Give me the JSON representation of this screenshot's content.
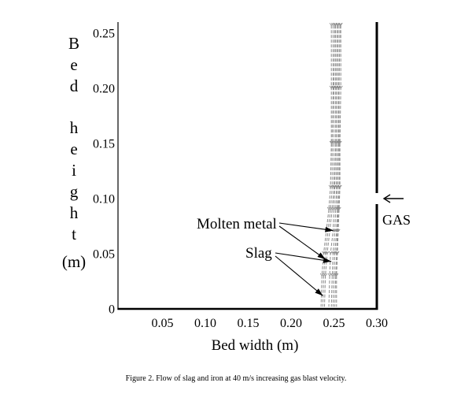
{
  "chart_data": {
    "type": "line",
    "xlabel": "Bed width (m)",
    "ylabel": "Bed height (m)",
    "xlim": [
      0,
      0.3
    ],
    "ylim": [
      0,
      0.26
    ],
    "x_ticks": [
      0.05,
      0.1,
      0.15,
      0.2,
      0.25,
      0.3
    ],
    "x_tick_labels": [
      "0.05",
      "0.10",
      "0.15",
      "0.20",
      "0.25",
      "0.30"
    ],
    "y_ticks": [
      0,
      0.05,
      0.1,
      0.15,
      0.2,
      0.25
    ],
    "y_tick_labels": [
      "0",
      "0.05",
      "0.10",
      "0.15",
      "0.20",
      "0.25"
    ],
    "grid": false,
    "legend": "none",
    "series": [
      {
        "points": [
          [
            0.247,
            0.257
          ],
          [
            0.247,
            0.2
          ],
          [
            0.247,
            0.15
          ],
          [
            0.246,
            0.11
          ],
          [
            0.244,
            0.09
          ],
          [
            0.241,
            0.07
          ],
          [
            0.238,
            0.05
          ],
          [
            0.236,
            0.03
          ],
          [
            0.235,
            0.002
          ]
        ]
      },
      {
        "points": [
          [
            0.249,
            0.257
          ],
          [
            0.249,
            0.2
          ],
          [
            0.248,
            0.15
          ],
          [
            0.248,
            0.11
          ],
          [
            0.246,
            0.09
          ],
          [
            0.243,
            0.07
          ],
          [
            0.24,
            0.05
          ],
          [
            0.238,
            0.03
          ],
          [
            0.237,
            0.002
          ]
        ]
      },
      {
        "points": [
          [
            0.251,
            0.257
          ],
          [
            0.25,
            0.2
          ],
          [
            0.25,
            0.15
          ],
          [
            0.25,
            0.11
          ],
          [
            0.248,
            0.09
          ],
          [
            0.245,
            0.07
          ],
          [
            0.242,
            0.05
          ],
          [
            0.24,
            0.03
          ],
          [
            0.239,
            0.002
          ]
        ]
      },
      {
        "points": [
          [
            0.252,
            0.257
          ],
          [
            0.252,
            0.2
          ],
          [
            0.252,
            0.15
          ],
          [
            0.251,
            0.11
          ],
          [
            0.25,
            0.09
          ],
          [
            0.249,
            0.07
          ],
          [
            0.246,
            0.05
          ],
          [
            0.245,
            0.03
          ],
          [
            0.244,
            0.002
          ]
        ]
      },
      {
        "points": [
          [
            0.254,
            0.257
          ],
          [
            0.253,
            0.2
          ],
          [
            0.253,
            0.15
          ],
          [
            0.253,
            0.11
          ],
          [
            0.252,
            0.09
          ],
          [
            0.251,
            0.07
          ],
          [
            0.249,
            0.05
          ],
          [
            0.248,
            0.03
          ],
          [
            0.247,
            0.002
          ]
        ]
      },
      {
        "points": [
          [
            0.255,
            0.257
          ],
          [
            0.255,
            0.2
          ],
          [
            0.255,
            0.15
          ],
          [
            0.254,
            0.11
          ],
          [
            0.254,
            0.09
          ],
          [
            0.253,
            0.07
          ],
          [
            0.251,
            0.05
          ],
          [
            0.25,
            0.03
          ],
          [
            0.249,
            0.002
          ]
        ]
      },
      {
        "points": [
          [
            0.257,
            0.257
          ],
          [
            0.256,
            0.2
          ],
          [
            0.256,
            0.15
          ],
          [
            0.256,
            0.11
          ],
          [
            0.255,
            0.09
          ],
          [
            0.254,
            0.07
          ],
          [
            0.253,
            0.05
          ],
          [
            0.252,
            0.03
          ],
          [
            0.251,
            0.002
          ]
        ]
      },
      {
        "points": [
          [
            0.258,
            0.257
          ],
          [
            0.258,
            0.2
          ],
          [
            0.257,
            0.15
          ],
          [
            0.257,
            0.11
          ],
          [
            0.256,
            0.09
          ],
          [
            0.255,
            0.07
          ],
          [
            0.254,
            0.05
          ],
          [
            0.253,
            0.03
          ],
          [
            0.253,
            0.002
          ]
        ]
      }
    ],
    "annotations": [
      {
        "text": "Molten metal",
        "targets": [
          [
            0.249,
            0.071
          ],
          [
            0.24,
            0.045
          ]
        ]
      },
      {
        "text": "Slag",
        "targets": [
          [
            0.247,
            0.043
          ],
          [
            0.237,
            0.012
          ]
        ]
      }
    ],
    "gas_inlet": {
      "label": "GAS",
      "y_range": [
        0.095,
        0.105
      ]
    },
    "colors": {
      "flow_trace": "#8a8a8a",
      "axes": "#000000",
      "annotation": "#000000"
    }
  },
  "caption": "Figure 2. Flow of slag and iron at 40 m/s increasing gas blast velocity."
}
